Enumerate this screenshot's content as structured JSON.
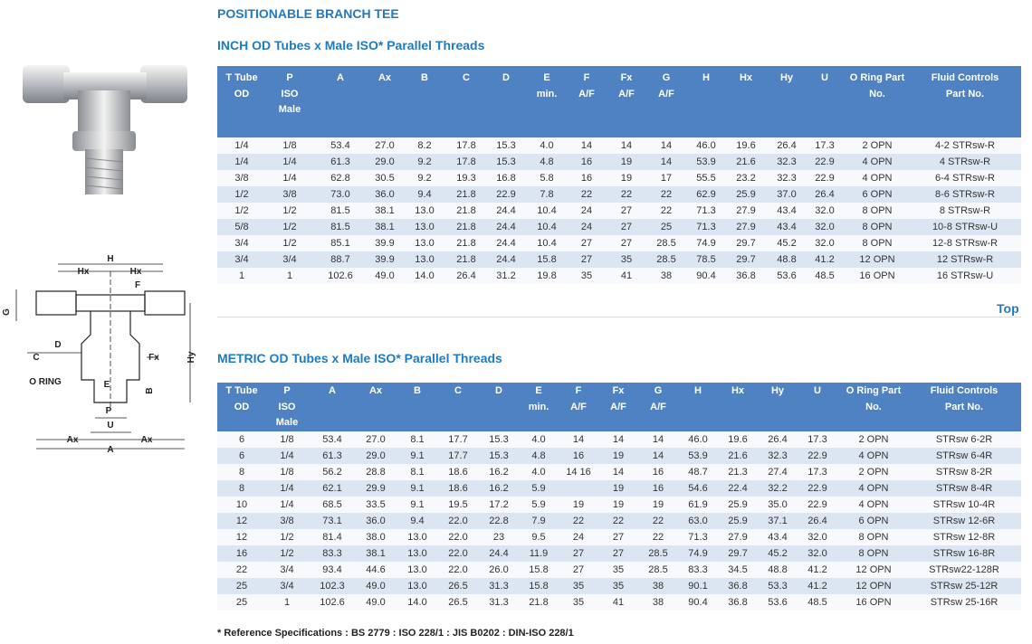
{
  "title": "POSITIONABLE BRANCH TEE",
  "drawing_labels": [
    "H",
    "Hx",
    "Hx",
    "F",
    "G",
    "D",
    "C",
    "O RING",
    "Fx",
    "Hy",
    "E",
    "B",
    "P",
    "U",
    "Ax",
    "Ax",
    "A"
  ],
  "inch_table": {
    "heading": "INCH OD Tubes x Male ISO* Parallel Threads",
    "headers": [
      [
        "T Tube",
        "OD"
      ],
      [
        "P",
        "ISO",
        "Male"
      ],
      [
        "A"
      ],
      [
        "Ax"
      ],
      [
        "B"
      ],
      [
        "C"
      ],
      [
        "D"
      ],
      [
        "E",
        "min."
      ],
      [
        "F",
        "A/F"
      ],
      [
        "Fx",
        "A/F"
      ],
      [
        "G",
        "A/F"
      ],
      [
        "H"
      ],
      [
        "Hx"
      ],
      [
        "Hy"
      ],
      [
        "U"
      ],
      [
        "O Ring Part",
        "No."
      ],
      [
        "Fluid Controls",
        "Part No."
      ]
    ],
    "rows": [
      [
        "1/4",
        "1/8",
        "53.4",
        "27.0",
        "8.2",
        "17.8",
        "15.3",
        "4.0",
        "14",
        "14",
        "14",
        "46.0",
        "19.6",
        "26.4",
        "17.3",
        "2 OPN",
        "4-2 STRsw-R"
      ],
      [
        "1/4",
        "1/4",
        "61.3",
        "29.0",
        "9.2",
        "17.8",
        "15.3",
        "4.8",
        "16",
        "19",
        "14",
        "53.9",
        "21.6",
        "32.3",
        "22.9",
        "4 OPN",
        "4 STRsw-R"
      ],
      [
        "3/8",
        "1/4",
        "62.8",
        "30.5",
        "9.2",
        "19.3",
        "16.8",
        "5.8",
        "16",
        "19",
        "17",
        "55.5",
        "23.2",
        "32.3",
        "22.9",
        "4 OPN",
        "6-4 STRsw-R"
      ],
      [
        "1/2",
        "3/8",
        "73.0",
        "36.0",
        "9.4",
        "21.8",
        "22.9",
        "7.8",
        "22",
        "22",
        "22",
        "62.9",
        "25.9",
        "37.0",
        "26.4",
        "6 OPN",
        "8-6 STRsw-R"
      ],
      [
        "1/2",
        "1/2",
        "81.5",
        "38.1",
        "13.0",
        "21.8",
        "24.4",
        "10.4",
        "24",
        "27",
        "22",
        "71.3",
        "27.9",
        "43.4",
        "32.0",
        "8 OPN",
        "8 STRsw-R"
      ],
      [
        "5/8",
        "1/2",
        "81.5",
        "38.1",
        "13.0",
        "21.8",
        "24.4",
        "10.4",
        "24",
        "27",
        "25",
        "71.3",
        "27.9",
        "43.4",
        "32.0",
        "8 OPN",
        "10-8 STRsw-U"
      ],
      [
        "3/4",
        "1/2",
        "85.1",
        "39.9",
        "13.0",
        "21.8",
        "24.4",
        "10.4",
        "27",
        "27",
        "28.5",
        "74.9",
        "29.7",
        "45.2",
        "32.0",
        "8 OPN",
        "12-8 STRsw-R"
      ],
      [
        "3/4",
        "3/4",
        "88.7",
        "39.9",
        "13.0",
        "21.8",
        "24.4",
        "15.8",
        "27",
        "35",
        "28.5",
        "78.5",
        "29.7",
        "48.8",
        "41.2",
        "12 OPN",
        "12 STRsw-R"
      ],
      [
        "1",
        "1",
        "102.6",
        "49.0",
        "14.0",
        "26.4",
        "31.2",
        "19.8",
        "35",
        "41",
        "38",
        "90.4",
        "36.8",
        "53.6",
        "48.5",
        "16 OPN",
        "16 STRsw-U"
      ]
    ]
  },
  "top_link": "Top",
  "metric_table": {
    "heading": "METRIC OD Tubes x Male ISO* Parallel Threads",
    "headers": [
      [
        "T Tube",
        "OD"
      ],
      [
        "P",
        "ISO",
        "Male"
      ],
      [
        "A"
      ],
      [
        "Ax"
      ],
      [
        "B"
      ],
      [
        "C"
      ],
      [
        "D"
      ],
      [
        "E",
        "min."
      ],
      [
        "F",
        "A/F"
      ],
      [
        "Fx",
        "A/F"
      ],
      [
        "G",
        "A/F"
      ],
      [
        "H"
      ],
      [
        "Hx"
      ],
      [
        "Hy"
      ],
      [
        "U"
      ],
      [
        "O Ring Part",
        "No."
      ],
      [
        "Fluid Controls",
        "Part No."
      ]
    ],
    "rows": [
      [
        "6",
        "1/8",
        "53.4",
        "27.0",
        "8.1",
        "17.7",
        "15.3",
        "4.0",
        "14",
        "14",
        "14",
        "46.0",
        "19.6",
        "26.4",
        "17.3",
        "2 OPN",
        "STRsw 6-2R"
      ],
      [
        "6",
        "1/4",
        "61.3",
        "29.0",
        "9.1",
        "17.7",
        "15.3",
        "4.8",
        "16",
        "19",
        "14",
        "53.9",
        "21.6",
        "32.3",
        "22.9",
        "4 OPN",
        "STRsw 6-4R"
      ],
      [
        "8",
        "1/8",
        "56.2",
        "28.8",
        "8.1",
        "18.6",
        "16.2",
        "4.0",
        "14 16",
        "14",
        "16",
        "48.7",
        "21.3",
        "27.4",
        "17.3",
        "2 OPN",
        "STRsw 8-2R"
      ],
      [
        "8",
        "1/4",
        "62.1",
        "29.9",
        "9.1",
        "18.6",
        "16.2",
        "5.9",
        null,
        "19",
        "16",
        "54.6",
        "22.4",
        "32.2",
        "22.9",
        "4 OPN",
        "STRsw 8-4R"
      ],
      [
        "10",
        "1/4",
        "68.5",
        "33.5",
        "9.1",
        "19.5",
        "17.2",
        "5.9",
        "19",
        "19",
        "19",
        "61.9",
        "25.9",
        "35.0",
        "22.9",
        "4 OPN",
        "STRsw 10-4R"
      ],
      [
        "12",
        "3/8",
        "73.1",
        "36.0",
        "9.4",
        "22.0",
        "22.8",
        "7.9",
        "22",
        "22",
        "22",
        "63.0",
        "25.9",
        "37.1",
        "26.4",
        "6 OPN",
        "STRsw 12-6R"
      ],
      [
        "12",
        "1/2",
        "81.4",
        "38.0",
        "13.0",
        "22.0",
        "23",
        "9.5",
        "24",
        "27",
        "22",
        "71.3",
        "27.9",
        "43.4",
        "32.0",
        "8 OPN",
        "STRsw 12-8R"
      ],
      [
        "16",
        "1/2",
        "83.3",
        "38.1",
        "13.0",
        "22.0",
        "24.4",
        "11.9",
        "27",
        "27",
        "28.5",
        "74.9",
        "29.7",
        "45.2",
        "32.0",
        "8 OPN",
        "STRsw 16-8R"
      ],
      [
        "22",
        "3/4",
        "93.4",
        "44.6",
        "13.0",
        "22.0",
        "26.0",
        "15.8",
        "27",
        "35",
        "28.5",
        "83.3",
        "34.5",
        "48.8",
        "41.2",
        "12 OPN",
        "STRsw22-128R"
      ],
      [
        "25",
        "3/4",
        "102.3",
        "49.0",
        "13.0",
        "26.5",
        "31.3",
        "15.8",
        "35",
        "35",
        "38",
        "90.1",
        "36.8",
        "53.3",
        "41.2",
        "12 OPN",
        "STRsw 25-12R"
      ],
      [
        "25",
        "1",
        "102.6",
        "49.0",
        "14.0",
        "26.5",
        "31.3",
        "21.8",
        "35",
        "41",
        "38",
        "90.4",
        "36.8",
        "53.6",
        "48.5",
        "16 OPN",
        "STRsw 25-16R"
      ]
    ]
  },
  "footnote": "* Reference Specifications : BS 2779 : ISO 228/1 : JIS B0202 : DIN-ISO 228/1"
}
